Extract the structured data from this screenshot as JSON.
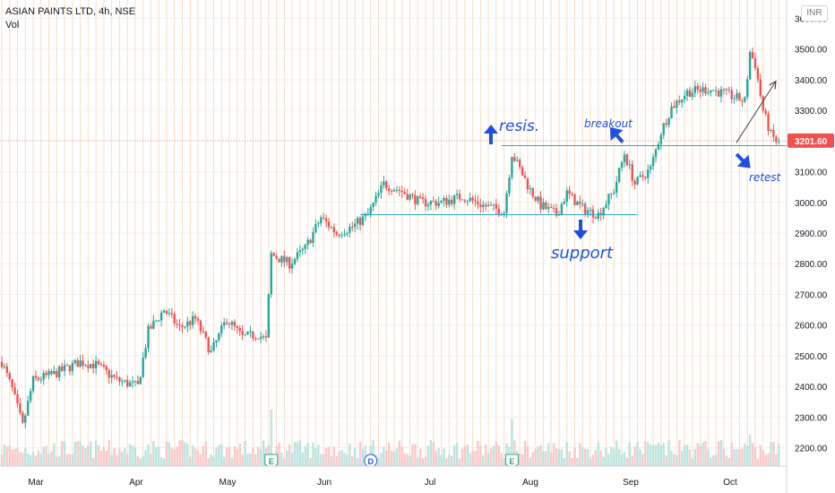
{
  "header": {
    "symbol": "ASIAN PAINTS LTD, 4h, NSE",
    "volume_label": "Vol",
    "currency_button": "INR"
  },
  "colors": {
    "up": "#26a69a",
    "down": "#ef5350",
    "vgrid": "#f7dcc0",
    "hgrid": "#eef0f3",
    "annotation": "#1e50e0",
    "level_line": "#2aa7c5",
    "price_tag": "#ef5350",
    "price_line": "#f0a0a0",
    "trend_line": "#444444"
  },
  "chart_data": {
    "type": "candlestick",
    "symbol": "ASIAN PAINTS LTD",
    "interval": "4h",
    "exchange": "NSE",
    "ylabel": "",
    "ylim": [
      2140,
      3660
    ],
    "y_ticks": [
      2200,
      2300,
      2400,
      2500,
      2600,
      2700,
      2800,
      2900,
      3000,
      3100,
      3200,
      3300,
      3400,
      3500,
      3600
    ],
    "y_tick_labels": [
      "2200.00",
      "2300.00",
      "2400.00",
      "2500.00",
      "2600.00",
      "2700.00",
      "2800.00",
      "2900.00",
      "3000.00",
      "3100.00",
      "3200.00",
      "3300.00",
      "3400.00",
      "3500.00",
      "3600.00"
    ],
    "x_months": [
      "Mar",
      "Apr",
      "May",
      "Jun",
      "Jul",
      "Aug",
      "Sep",
      "Oct"
    ],
    "last_price": 3201.6,
    "last_price_label": "3201.60",
    "support_level": 2960,
    "resistance_level": 3185,
    "anchors": [
      [
        0,
        2480
      ],
      [
        4,
        2390
      ],
      [
        8,
        2270
      ],
      [
        12,
        2420
      ],
      [
        20,
        2440
      ],
      [
        30,
        2480
      ],
      [
        36,
        2470
      ],
      [
        44,
        2420
      ],
      [
        52,
        2400
      ],
      [
        56,
        2580
      ],
      [
        62,
        2650
      ],
      [
        68,
        2590
      ],
      [
        74,
        2620
      ],
      [
        80,
        2510
      ],
      [
        86,
        2620
      ],
      [
        92,
        2560
      ],
      [
        98,
        2570
      ],
      [
        101,
        2550
      ],
      [
        103,
        2830
      ],
      [
        110,
        2800
      ],
      [
        116,
        2850
      ],
      [
        122,
        2950
      ],
      [
        128,
        2900
      ],
      [
        134,
        2920
      ],
      [
        140,
        2960
      ],
      [
        146,
        3060
      ],
      [
        152,
        3040
      ],
      [
        160,
        3000
      ],
      [
        168,
        3000
      ],
      [
        176,
        3020
      ],
      [
        184,
        2990
      ],
      [
        192,
        2970
      ],
      [
        195,
        3160
      ],
      [
        202,
        3040
      ],
      [
        206,
        2990
      ],
      [
        212,
        2960
      ],
      [
        216,
        3030
      ],
      [
        222,
        2980
      ],
      [
        228,
        2960
      ],
      [
        234,
        3040
      ],
      [
        238,
        3160
      ],
      [
        242,
        3060
      ],
      [
        248,
        3110
      ],
      [
        252,
        3230
      ],
      [
        256,
        3310
      ],
      [
        262,
        3360
      ],
      [
        270,
        3370
      ],
      [
        278,
        3350
      ],
      [
        284,
        3330
      ],
      [
        286,
        3490
      ],
      [
        288,
        3450
      ],
      [
        291,
        3300
      ],
      [
        294,
        3220
      ],
      [
        297,
        3190
      ]
    ],
    "volume_spikes": [
      [
        103,
        0.9
      ],
      [
        195,
        0.75
      ],
      [
        286,
        0.5
      ]
    ],
    "events": [
      {
        "label": "E",
        "index": 103,
        "kind": "earnings"
      },
      {
        "label": "D",
        "index": 141,
        "kind": "dividend"
      },
      {
        "label": "E",
        "index": 195,
        "kind": "earnings"
      }
    ]
  },
  "annotations": {
    "resis": "resis.",
    "breakout": "breakout",
    "support": "support",
    "retest": "retest"
  }
}
